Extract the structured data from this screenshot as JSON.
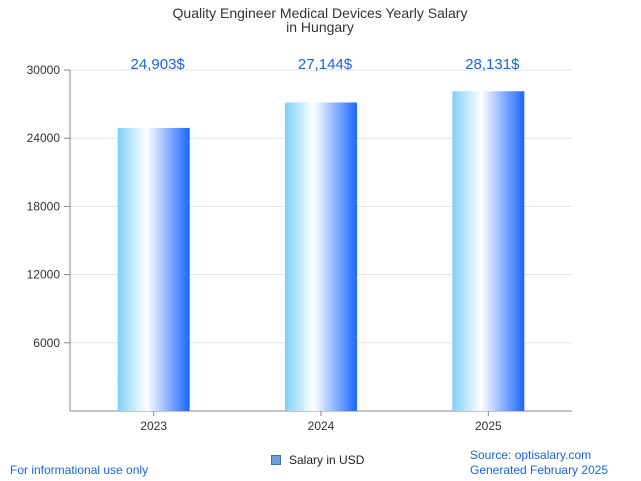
{
  "chart_data": {
    "type": "bar",
    "title": [
      "Quality Engineer Medical Devices Yearly Salary",
      "in Hungary"
    ],
    "categories": [
      "2023",
      "2024",
      "2025"
    ],
    "series": [
      {
        "name": "Salary in USD",
        "values": [
          24903,
          27144,
          28131
        ]
      }
    ],
    "data_labels": [
      "24,903$",
      "27,144$",
      "28,131$"
    ],
    "y_ticks": [
      6000,
      12000,
      18000,
      24000,
      30000
    ],
    "ylim": [
      0,
      30000
    ],
    "grid": true,
    "legend": "bottom-center"
  },
  "colors": {
    "bar_light": "#d8f3ff",
    "bar_mid": "#7fd0f5",
    "bar_dark": "#1a66ff",
    "label": "#1a66d9",
    "legend_swatch": "#6f9fd8"
  },
  "footer": {
    "left": "For informational use only",
    "source": "Source: optisalary.com",
    "generated": "Generated February 2025"
  }
}
